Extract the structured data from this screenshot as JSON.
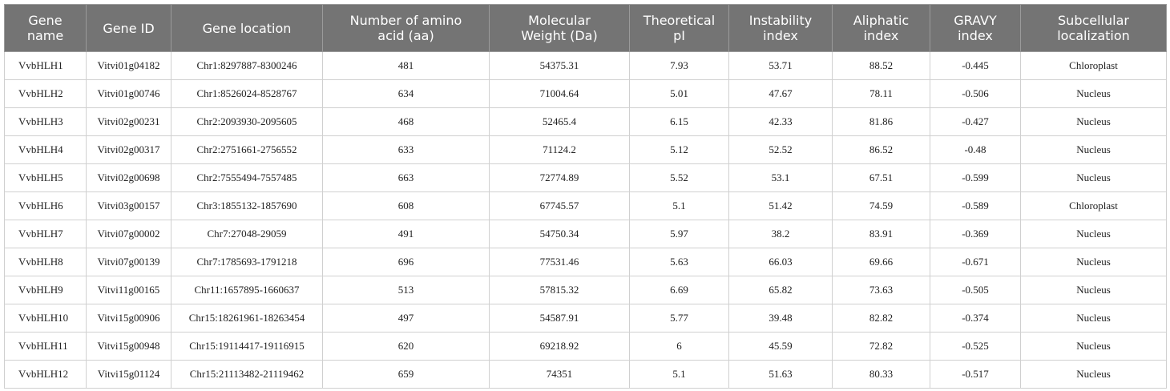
{
  "table": {
    "header": [
      [
        "Gene",
        "name"
      ],
      [
        "Gene ID"
      ],
      [
        "Gene location"
      ],
      [
        "Number of amino",
        "acid (aa)"
      ],
      [
        "Molecular",
        "Weight (Da)"
      ],
      [
        "Theoretical",
        "pI"
      ],
      [
        "Instability",
        "index"
      ],
      [
        "Aliphatic",
        "index"
      ],
      [
        "GRAVY",
        "index"
      ],
      [
        "Subcellular",
        "localization"
      ]
    ],
    "rows": [
      [
        "VvbHLH1",
        "Vitvi01g04182",
        "Chr1:8297887-8300246",
        "481",
        "54375.31",
        "7.93",
        "53.71",
        "88.52",
        "-0.445",
        "Chloroplast"
      ],
      [
        "VvbHLH2",
        "Vitvi01g00746",
        "Chr1:8526024-8528767",
        "634",
        "71004.64",
        "5.01",
        "47.67",
        "78.11",
        "-0.506",
        "Nucleus"
      ],
      [
        "VvbHLH3",
        "Vitvi02g00231",
        "Chr2:2093930-2095605",
        "468",
        "52465.4",
        "6.15",
        "42.33",
        "81.86",
        "-0.427",
        "Nucleus"
      ],
      [
        "VvbHLH4",
        "Vitvi02g00317",
        "Chr2:2751661-2756552",
        "633",
        "71124.2",
        "5.12",
        "52.52",
        "86.52",
        "-0.48",
        "Nucleus"
      ],
      [
        "VvbHLH5",
        "Vitvi02g00698",
        "Chr2:7555494-7557485",
        "663",
        "72774.89",
        "5.52",
        "53.1",
        "67.51",
        "-0.599",
        "Nucleus"
      ],
      [
        "VvbHLH6",
        "Vitvi03g00157",
        "Chr3:1855132-1857690",
        "608",
        "67745.57",
        "5.1",
        "51.42",
        "74.59",
        "-0.589",
        "Chloroplast"
      ],
      [
        "VvbHLH7",
        "Vitvi07g00002",
        "Chr7:27048-29059",
        "491",
        "54750.34",
        "5.97",
        "38.2",
        "83.91",
        "-0.369",
        "Nucleus"
      ],
      [
        "VvbHLH8",
        "Vitvi07g00139",
        "Chr7:1785693-1791218",
        "696",
        "77531.46",
        "5.63",
        "66.03",
        "69.66",
        "-0.671",
        "Nucleus"
      ],
      [
        "VvbHLH9",
        "Vitvi11g00165",
        "Chr11:1657895-1660637",
        "513",
        "57815.32",
        "6.69",
        "65.82",
        "73.63",
        "-0.505",
        "Nucleus"
      ],
      [
        "VvbHLH10",
        "Vitvi15g00906",
        "Chr15:18261961-18263454",
        "497",
        "54587.91",
        "5.77",
        "39.48",
        "82.82",
        "-0.374",
        "Nucleus"
      ],
      [
        "VvbHLH11",
        "Vitvi15g00948",
        "Chr15:19114417-19116915",
        "620",
        "69218.92",
        "6",
        "45.59",
        "72.82",
        "-0.525",
        "Nucleus"
      ],
      [
        "VvbHLH12",
        "Vitvi15g01124",
        "Chr15:21113482-21119462",
        "659",
        "74351",
        "5.1",
        "51.63",
        "80.33",
        "-0.517",
        "Nucleus"
      ]
    ]
  }
}
